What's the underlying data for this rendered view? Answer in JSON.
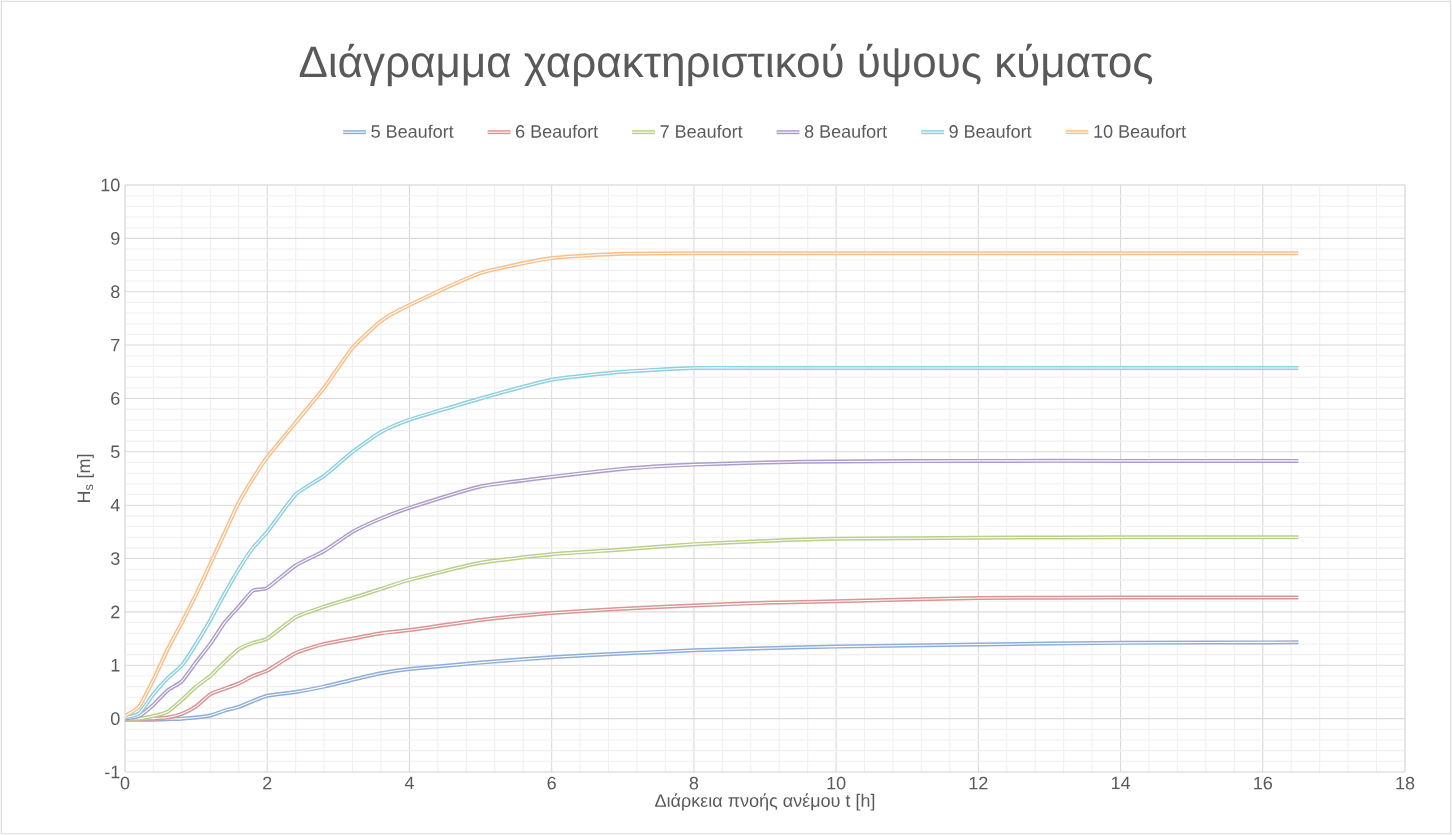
{
  "chart_data": {
    "type": "line",
    "title": "Διάγραμμα χαρακτηριστικού ύψους κύματος",
    "xlabel": "Διάρκεια πνοής ανέμου t [h]",
    "ylabel": "H$_{s}$ [m]",
    "x": [
      0,
      0.2,
      0.4,
      0.6,
      0.8,
      1,
      1.2,
      1.4,
      1.6,
      1.8,
      2,
      2.4,
      2.8,
      3.2,
      3.6,
      4,
      5,
      6,
      7,
      8,
      9,
      10,
      12,
      14,
      16.5
    ],
    "series": [
      {
        "name": "5 Beaufort",
        "color": "#8eaed9",
        "values": [
          -0.02,
          -0.02,
          -0.02,
          -0.01,
          0,
          0.02,
          0.06,
          0.15,
          0.22,
          0.33,
          0.43,
          0.5,
          0.6,
          0.73,
          0.85,
          0.93,
          1.05,
          1.15,
          1.22,
          1.28,
          1.32,
          1.35,
          1.39,
          1.42,
          1.43
        ]
      },
      {
        "name": "6 Beaufort",
        "color": "#d99594",
        "values": [
          0,
          0,
          0,
          0.02,
          0.09,
          0.23,
          0.46,
          0.56,
          0.66,
          0.8,
          0.9,
          1.23,
          1.4,
          1.5,
          1.6,
          1.66,
          1.85,
          1.98,
          2.06,
          2.12,
          2.17,
          2.2,
          2.26,
          2.27,
          2.27
        ]
      },
      {
        "name": "7 Beaufort",
        "color": "#b9cf8c",
        "values": [
          0,
          0,
          0.05,
          0.13,
          0.35,
          0.6,
          0.8,
          1.06,
          1.3,
          1.42,
          1.5,
          1.9,
          2.1,
          2.26,
          2.43,
          2.6,
          2.92,
          3.08,
          3.17,
          3.27,
          3.33,
          3.37,
          3.39,
          3.4,
          3.4
        ]
      },
      {
        "name": "8 Beaufort",
        "color": "#ad9cc8",
        "values": [
          0,
          0.05,
          0.26,
          0.53,
          0.7,
          1.06,
          1.4,
          1.8,
          2.1,
          2.4,
          2.45,
          2.87,
          3.14,
          3.5,
          3.75,
          3.95,
          4.35,
          4.53,
          4.68,
          4.76,
          4.8,
          4.82,
          4.83,
          4.83,
          4.83
        ]
      },
      {
        "name": "9 Beaufort",
        "color": "#8ecfe0",
        "values": [
          0.02,
          0.1,
          0.46,
          0.76,
          1.0,
          1.4,
          1.85,
          2.34,
          2.8,
          3.2,
          3.5,
          4.2,
          4.55,
          5.0,
          5.37,
          5.6,
          6.0,
          6.35,
          6.5,
          6.57,
          6.57,
          6.57,
          6.57,
          6.57,
          6.57
        ]
      },
      {
        "name": "10 Beaufort",
        "color": "#f8bf8a",
        "values": [
          0.05,
          0.23,
          0.73,
          1.3,
          1.8,
          2.33,
          2.9,
          3.48,
          4.05,
          4.5,
          4.9,
          5.55,
          6.2,
          6.95,
          7.45,
          7.75,
          8.35,
          8.63,
          8.71,
          8.72,
          8.72,
          8.72,
          8.72,
          8.72,
          8.72
        ]
      }
    ],
    "xlim": [
      0,
      18
    ],
    "xticks": [
      0,
      2,
      4,
      6,
      8,
      10,
      12,
      14,
      16,
      18
    ],
    "ylim": [
      -1,
      10
    ],
    "yticks": [
      -1,
      0,
      1,
      2,
      3,
      4,
      5,
      6,
      7,
      8,
      9,
      10
    ],
    "grid": true,
    "legend": "top",
    "marker": "none",
    "line_style": "solid"
  }
}
